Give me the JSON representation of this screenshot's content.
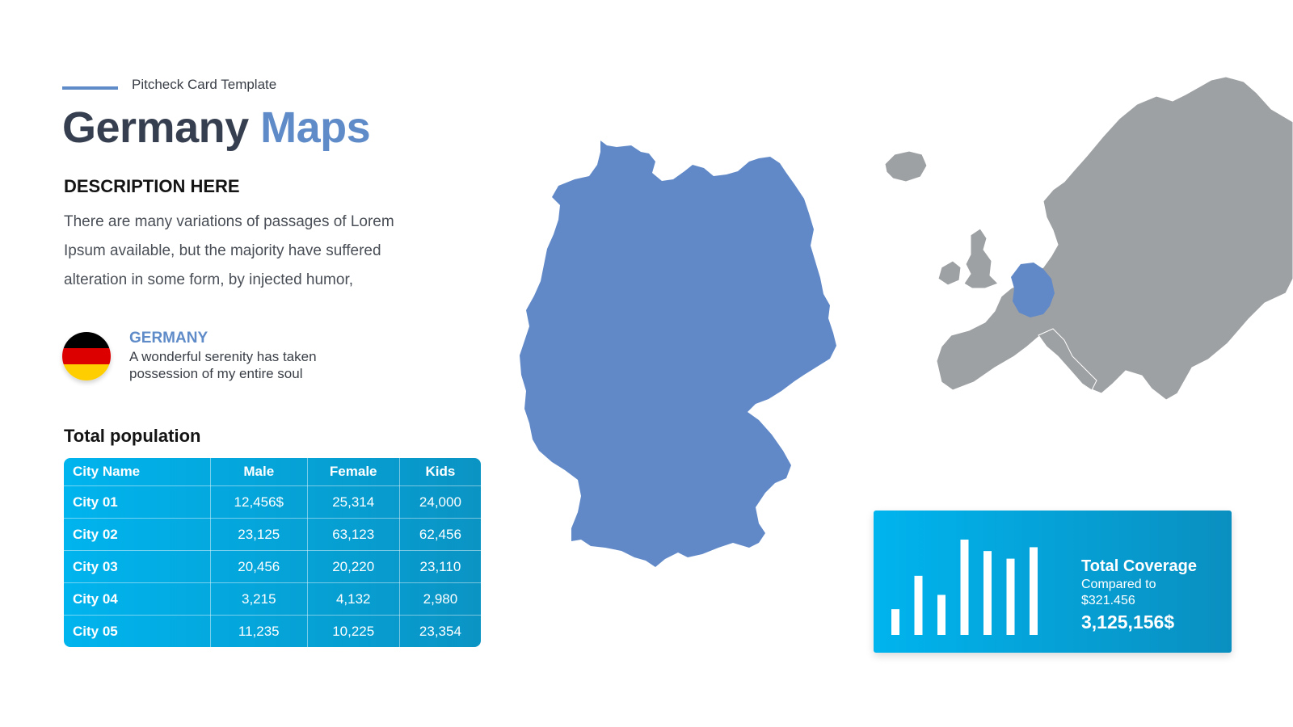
{
  "header": {
    "eyebrow": "Pitcheck Card Template",
    "title_dark": "Germany",
    "title_blue": "Maps"
  },
  "description": {
    "heading": "DESCRIPTION HERE",
    "body": "There are many variations of passages of Lorem Ipsum available, but the majority have suffered alteration in some form, by injected humor,"
  },
  "country": {
    "name": "GERMANY",
    "tagline": "A wonderful serenity has taken possession of my entire soul",
    "flag_colors": [
      "#000000",
      "#dd0000",
      "#ffce00"
    ]
  },
  "population": {
    "title": "Total population",
    "columns": [
      "City Name",
      "Male",
      "Female",
      "Kids"
    ],
    "rows": [
      [
        "City 01",
        "12,456$",
        "25,314",
        "24,000"
      ],
      [
        "City 02",
        "23,125",
        "63,123",
        "62,456"
      ],
      [
        "City 03",
        "20,456",
        "20,220",
        "23,110"
      ],
      [
        "City 04",
        "3,215",
        "4,132",
        "2,980"
      ],
      [
        "City 05",
        "11,235",
        "10,225",
        "23,354"
      ]
    ]
  },
  "coverage": {
    "title": "Total Coverage",
    "subtitle": "Compared to $321.456",
    "value": "3,125,156$",
    "bar_levels": [
      0.27,
      0.62,
      0.42,
      1.0,
      0.88,
      0.8,
      0.92
    ]
  },
  "colors": {
    "accent_blue": "#5f8bc8",
    "dark_text": "#363f4f",
    "cyan": "#00b4ee",
    "europe_gray": "#9ea1a3",
    "germany_blue": "#6189c8"
  }
}
